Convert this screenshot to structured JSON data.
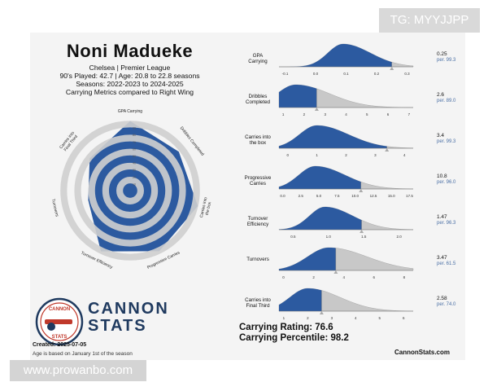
{
  "badges": {
    "top_right": "TG: MYYJJPP",
    "bottom_left": "www.prowanbo.com"
  },
  "header": {
    "player": "Noni Madueke",
    "club_league": "Chelsea | Premier League",
    "played_age": "90's Played: 42.7 | Age: 20.8 to 22.8 seasons",
    "seasons": "Seasons: 2022-2023 to 2024-2025",
    "comparison": "Carrying Metrics compared to Right Wing"
  },
  "brand": {
    "line1": "CANNON",
    "line2": "STATS",
    "logo_top": "CANNON",
    "logo_bottom": "STATS",
    "website": "CannonStats.com",
    "created": "Created: 2025-07-05",
    "age_note": "Age is based on January 1st of the season"
  },
  "summary": {
    "rating": "Carrying Rating: 76.6",
    "percentile": "Carrying Percentile: 98.2"
  },
  "colors": {
    "blue": "#2c5aa0",
    "light_blue": "#6f8fc0",
    "ring_gray": "#cfcfcf",
    "density_gray": "#c8c8c8"
  },
  "chart_data": [
    {
      "type": "radar",
      "axes": [
        "GPA Carrying",
        "Dribbles Completed",
        "Carries into the box",
        "Progressive Carries",
        "Turnover Efficiency",
        "Turnovers",
        "Carries into Final Third"
      ],
      "values": [
        99.3,
        89.0,
        99.3,
        96.0,
        96.3,
        61.5,
        74.0
      ],
      "range": [
        0,
        100
      ],
      "ring_labels": [
        "10",
        "20",
        "30",
        "40",
        "50",
        "60",
        "70",
        "80",
        "90"
      ]
    },
    {
      "type": "area",
      "panels": [
        {
          "label": "GPA Carrying",
          "xticks": [
            "-0.1",
            "0.0",
            "0.1",
            "0.2",
            "0.3"
          ],
          "xlim": [
            -0.12,
            0.32
          ],
          "peak": 0.09,
          "spread": 0.05,
          "player_value": 0.25,
          "value_label": "0.25",
          "per_label": "per. 99.3"
        },
        {
          "label": "Dribbles Completed",
          "xticks": [
            "1",
            "2",
            "3",
            "4",
            "5",
            "6",
            "7"
          ],
          "xlim": [
            0.8,
            7.2
          ],
          "peak": 1.6,
          "spread": 0.9,
          "player_value": 2.6,
          "value_label": "2.6",
          "per_label": "per. 89.0"
        },
        {
          "label": "Carries into the box",
          "xticks": [
            "0",
            "1",
            "2",
            "3",
            "4"
          ],
          "xlim": [
            -0.3,
            4.3
          ],
          "peak": 1.0,
          "spread": 0.6,
          "player_value": 3.4,
          "value_label": "3.4",
          "per_label": "per. 99.3"
        },
        {
          "label": "Progressive Carries",
          "xticks": [
            "0.0",
            "2.5",
            "5.0",
            "7.5",
            "10.0",
            "12.5",
            "15.0",
            "17.5"
          ],
          "xlim": [
            -0.5,
            18
          ],
          "peak": 4.5,
          "spread": 2.3,
          "player_value": 10.8,
          "value_label": "10.8",
          "per_label": "per. 96.0"
        },
        {
          "label": "Turnover Efficiency",
          "xticks": [
            "0.5",
            "1.0",
            "1.5",
            "2.0"
          ],
          "xlim": [
            0.3,
            2.2
          ],
          "peak": 0.95,
          "spread": 0.22,
          "player_value": 1.47,
          "value_label": "1.47",
          "per_label": "per. 96.3"
        },
        {
          "label": "Turnovers",
          "xticks": [
            "0",
            "2",
            "4",
            "6",
            "8"
          ],
          "xlim": [
            -0.3,
            8.6
          ],
          "peak": 3.0,
          "spread": 1.4,
          "player_value": 3.47,
          "value_label": "3.47",
          "per_label": "per. 61.5"
        },
        {
          "label": "Carries into Final Third",
          "xticks": [
            "1",
            "2",
            "3",
            "4",
            "5",
            "6"
          ],
          "xlim": [
            0.8,
            6.4
          ],
          "peak": 2.0,
          "spread": 0.75,
          "player_value": 2.58,
          "value_label": "2.58",
          "per_label": "per. 74.0"
        }
      ]
    }
  ]
}
